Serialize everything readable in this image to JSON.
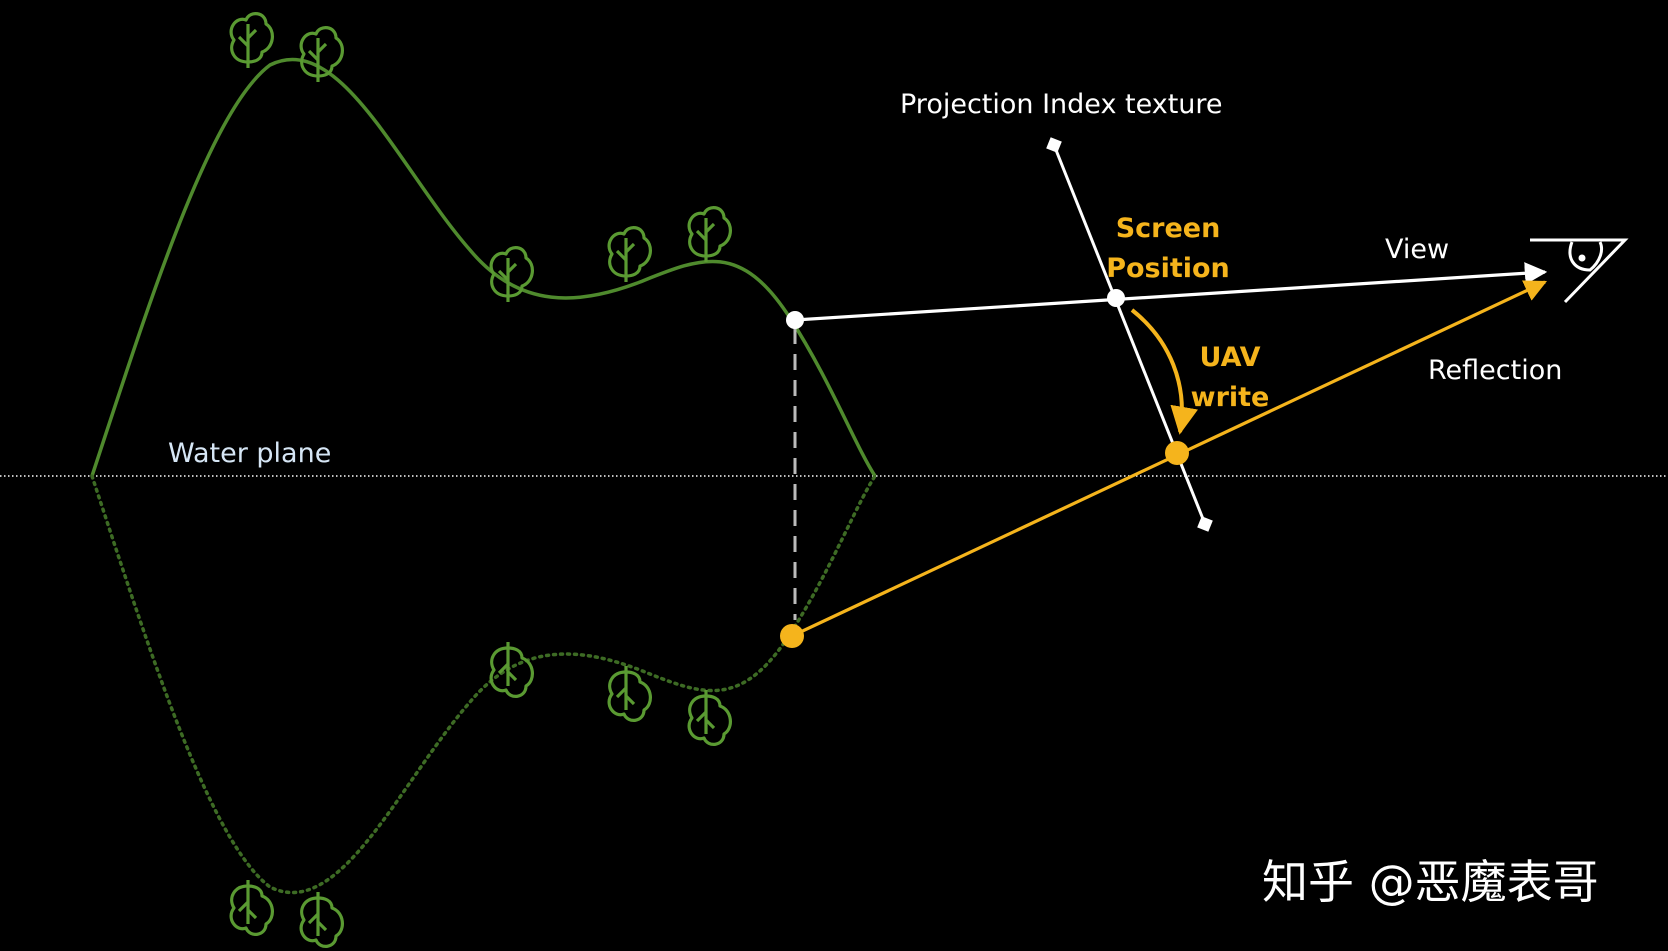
{
  "labels": {
    "projection_texture": "Projection Index texture",
    "screen_position_line1": "Screen",
    "screen_position_line2": "Position",
    "view": "View",
    "uav_line1": "UAV",
    "uav_line2": "write",
    "reflection": "Reflection",
    "water_plane": "Water plane",
    "watermark": "知乎 @恶魔表哥"
  },
  "colors": {
    "background": "#000000",
    "terrain": "#4f8a2d",
    "terrain_reflection": "#3d6b24",
    "tree": "#5a9a32",
    "white": "#ffffff",
    "accent": "#f5b41c",
    "water_plane_text": "#d6e6f5",
    "dashed_line": "#bbbbbb",
    "watermark": "#ffffff"
  },
  "icons": {
    "eye": "eye-icon",
    "tree": "tree-icon"
  }
}
